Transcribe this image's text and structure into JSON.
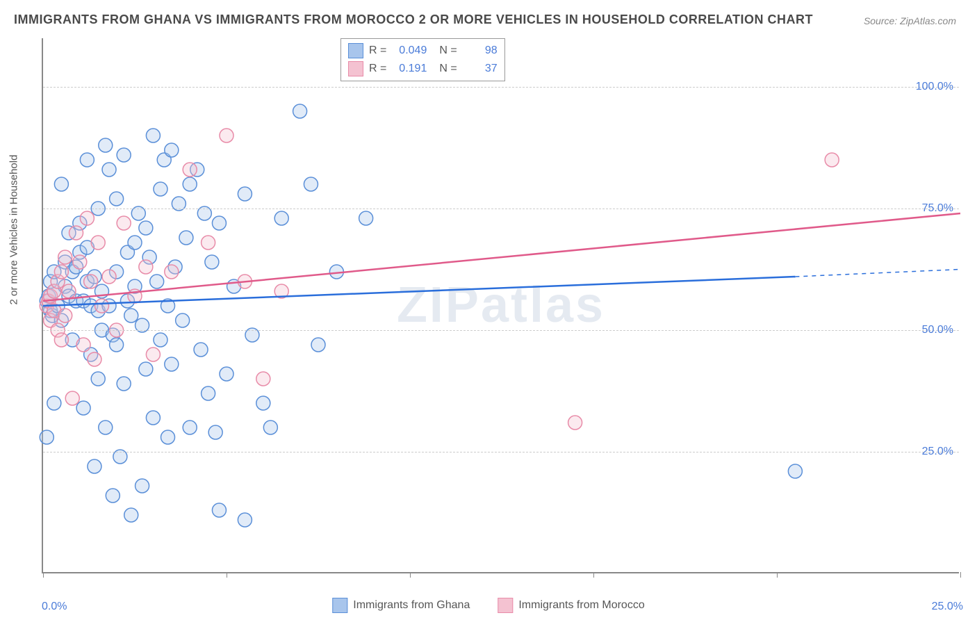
{
  "title": "IMMIGRANTS FROM GHANA VS IMMIGRANTS FROM MOROCCO 2 OR MORE VEHICLES IN HOUSEHOLD CORRELATION CHART",
  "source": "Source: ZipAtlas.com",
  "watermark": "ZIPatlas",
  "yaxis_label": "2 or more Vehicles in Household",
  "chart": {
    "type": "scatter",
    "xlim": [
      0,
      25
    ],
    "ylim": [
      0,
      110
    ],
    "yticks": [
      25,
      50,
      75,
      100
    ],
    "ytick_labels": [
      "25.0%",
      "50.0%",
      "75.0%",
      "100.0%"
    ],
    "xticks": [
      0,
      5,
      10,
      15,
      20,
      25
    ],
    "xtick_labels": [
      "0.0%",
      "",
      "",
      "",
      "",
      "25.0%"
    ],
    "background_color": "#ffffff",
    "grid_color": "#cccccc",
    "marker_radius": 10,
    "marker_stroke_width": 1.5,
    "marker_fill_opacity": 0.35,
    "line_width": 2.5
  },
  "series": [
    {
      "name": "Immigrants from Ghana",
      "color_stroke": "#5a8fd8",
      "color_fill": "#a8c5ec",
      "R": "0.049",
      "N": "98",
      "trend": {
        "x0": 0,
        "y0": 55,
        "x1": 20.5,
        "y1": 61,
        "dash_to_x": 25,
        "dash_to_y": 62.5,
        "color": "#2a6edb"
      },
      "points": [
        [
          0.1,
          56
        ],
        [
          0.2,
          54
        ],
        [
          0.15,
          57
        ],
        [
          0.1,
          28
        ],
        [
          0.2,
          60
        ],
        [
          0.3,
          58
        ],
        [
          0.25,
          53
        ],
        [
          0.3,
          62
        ],
        [
          0.3,
          35
        ],
        [
          0.4,
          55
        ],
        [
          0.5,
          80
        ],
        [
          0.5,
          52
        ],
        [
          0.6,
          59
        ],
        [
          0.6,
          64
        ],
        [
          0.7,
          57
        ],
        [
          0.7,
          70
        ],
        [
          0.8,
          48
        ],
        [
          0.8,
          62
        ],
        [
          0.9,
          56
        ],
        [
          0.9,
          63
        ],
        [
          1.0,
          66
        ],
        [
          1.0,
          72
        ],
        [
          1.1,
          34
        ],
        [
          1.1,
          56
        ],
        [
          1.2,
          60
        ],
        [
          1.2,
          67
        ],
        [
          1.2,
          85
        ],
        [
          1.3,
          55
        ],
        [
          1.3,
          45
        ],
        [
          1.4,
          22
        ],
        [
          1.4,
          61
        ],
        [
          1.5,
          54
        ],
        [
          1.5,
          75
        ],
        [
          1.5,
          40
        ],
        [
          1.6,
          58
        ],
        [
          1.6,
          50
        ],
        [
          1.7,
          30
        ],
        [
          1.7,
          88
        ],
        [
          1.8,
          55
        ],
        [
          1.8,
          83
        ],
        [
          1.9,
          49
        ],
        [
          1.9,
          16
        ],
        [
          2.0,
          77
        ],
        [
          2.0,
          62
        ],
        [
          2.0,
          47
        ],
        [
          2.1,
          24
        ],
        [
          2.2,
          86
        ],
        [
          2.2,
          39
        ],
        [
          2.3,
          56
        ],
        [
          2.3,
          66
        ],
        [
          2.4,
          53
        ],
        [
          2.4,
          12
        ],
        [
          2.5,
          68
        ],
        [
          2.5,
          59
        ],
        [
          2.6,
          74
        ],
        [
          2.7,
          51
        ],
        [
          2.7,
          18
        ],
        [
          2.8,
          71
        ],
        [
          2.8,
          42
        ],
        [
          2.9,
          65
        ],
        [
          3.0,
          32
        ],
        [
          3.0,
          90
        ],
        [
          3.1,
          60
        ],
        [
          3.2,
          79
        ],
        [
          3.2,
          48
        ],
        [
          3.3,
          85
        ],
        [
          3.4,
          55
        ],
        [
          3.4,
          28
        ],
        [
          3.5,
          87
        ],
        [
          3.5,
          43
        ],
        [
          3.6,
          63
        ],
        [
          3.7,
          76
        ],
        [
          3.8,
          52
        ],
        [
          3.9,
          69
        ],
        [
          4.0,
          30
        ],
        [
          4.0,
          80
        ],
        [
          4.2,
          83
        ],
        [
          4.3,
          46
        ],
        [
          4.4,
          74
        ],
        [
          4.5,
          37
        ],
        [
          4.6,
          64
        ],
        [
          4.7,
          29
        ],
        [
          4.8,
          72
        ],
        [
          4.8,
          13
        ],
        [
          5.0,
          41
        ],
        [
          5.2,
          59
        ],
        [
          5.5,
          78
        ],
        [
          5.5,
          11
        ],
        [
          5.7,
          49
        ],
        [
          6.0,
          35
        ],
        [
          6.2,
          30
        ],
        [
          6.5,
          73
        ],
        [
          7.0,
          95
        ],
        [
          7.3,
          80
        ],
        [
          7.5,
          47
        ],
        [
          8.0,
          62
        ],
        [
          8.8,
          73
        ],
        [
          20.5,
          21
        ]
      ]
    },
    {
      "name": "Immigrants from Morocco",
      "color_stroke": "#e88ba8",
      "color_fill": "#f4c2d1",
      "R": "0.191",
      "N": "37",
      "trend": {
        "x0": 0,
        "y0": 56,
        "x1": 25,
        "y1": 74,
        "color": "#e05a8a"
      },
      "points": [
        [
          0.1,
          55
        ],
        [
          0.15,
          56
        ],
        [
          0.2,
          52
        ],
        [
          0.2,
          57
        ],
        [
          0.3,
          54
        ],
        [
          0.3,
          58
        ],
        [
          0.4,
          50
        ],
        [
          0.4,
          60
        ],
        [
          0.5,
          48
        ],
        [
          0.5,
          62
        ],
        [
          0.6,
          53
        ],
        [
          0.6,
          65
        ],
        [
          0.7,
          58
        ],
        [
          0.8,
          36
        ],
        [
          0.9,
          70
        ],
        [
          1.0,
          64
        ],
        [
          1.1,
          47
        ],
        [
          1.2,
          73
        ],
        [
          1.3,
          60
        ],
        [
          1.4,
          44
        ],
        [
          1.5,
          68
        ],
        [
          1.6,
          55
        ],
        [
          1.8,
          61
        ],
        [
          2.0,
          50
        ],
        [
          2.2,
          72
        ],
        [
          2.5,
          57
        ],
        [
          2.8,
          63
        ],
        [
          3.0,
          45
        ],
        [
          3.5,
          62
        ],
        [
          4.0,
          83
        ],
        [
          4.5,
          68
        ],
        [
          5.0,
          90
        ],
        [
          5.5,
          60
        ],
        [
          6.0,
          40
        ],
        [
          6.5,
          58
        ],
        [
          14.5,
          31
        ],
        [
          21.5,
          85
        ]
      ]
    }
  ],
  "stats_box": {
    "rows": [
      {
        "swatch_fill": "#a8c5ec",
        "swatch_stroke": "#5a8fd8",
        "R": "0.049",
        "N": "98"
      },
      {
        "swatch_fill": "#f4c2d1",
        "swatch_stroke": "#e88ba8",
        "R": "0.191",
        "N": "37"
      }
    ]
  },
  "bottom_legend": [
    {
      "swatch_fill": "#a8c5ec",
      "swatch_stroke": "#5a8fd8",
      "label": "Immigrants from Ghana"
    },
    {
      "swatch_fill": "#f4c2d1",
      "swatch_stroke": "#e88ba8",
      "label": "Immigrants from Morocco"
    }
  ]
}
